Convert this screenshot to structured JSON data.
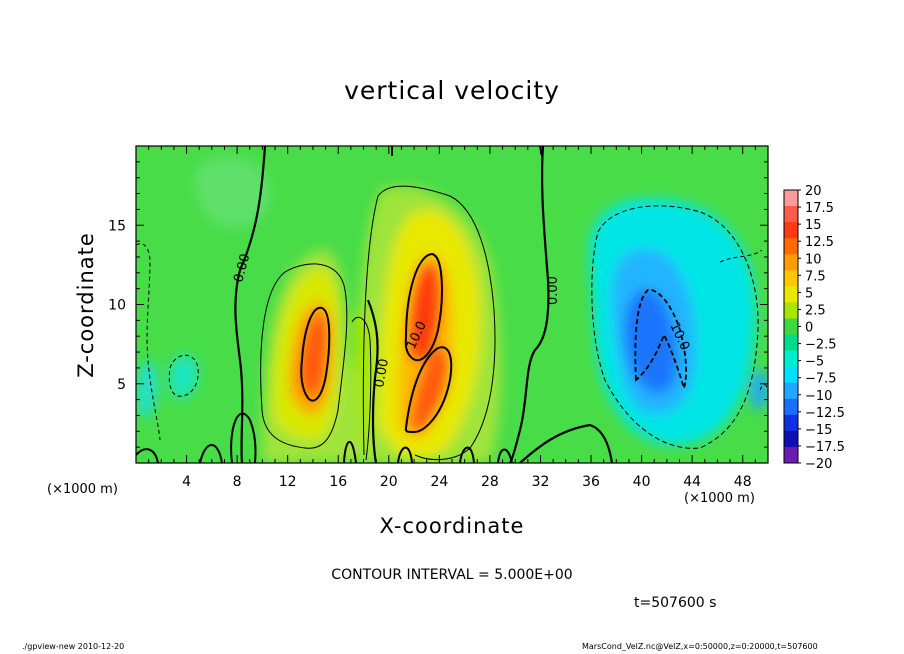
{
  "chart_data": {
    "type": "heatmap",
    "title": "vertical velocity",
    "xlabel": "X-coordinate",
    "ylabel": "Z-coordinate",
    "x_unit": "(×1000 m)",
    "y_unit": "(×1000 m)",
    "xlim": [
      0,
      50
    ],
    "ylim": [
      0,
      20
    ],
    "x_ticks": [
      4,
      8,
      12,
      16,
      20,
      24,
      28,
      32,
      36,
      40,
      44,
      48
    ],
    "y_ticks": [
      5,
      10,
      15
    ],
    "colorbar": {
      "labels": [
        "20",
        "17.5",
        "15",
        "12.5",
        "10",
        "7.5",
        "5",
        "2.5",
        "0",
        "−2.5",
        "−5",
        "−7.5",
        "−10",
        "−12.5",
        "−15",
        "−17.5",
        "−20"
      ],
      "colors": [
        "#ff9a9a",
        "#ff5a4a",
        "#ff3a12",
        "#ff6a00",
        "#ff9c00",
        "#ffc800",
        "#e8e800",
        "#a8e600",
        "#40d840",
        "#00dc8c",
        "#00eed0",
        "#00e0ff",
        "#20a8ff",
        "#1c6cff",
        "#1030e8",
        "#0c10b8",
        "#6a1cb0"
      ]
    },
    "contour_labels": [
      "0.00",
      "0.00",
      "10.0",
      "0.00",
      "10.0"
    ],
    "contour_interval": "CONTOUR INTERVAL = 5.000E+00",
    "time": "t=507600 s"
  },
  "footer": {
    "left": "./gpview-new 2010-12-20",
    "right": "MarsCond_VelZ.nc@VelZ,x=0:50000,z=0:20000,t=507600"
  }
}
